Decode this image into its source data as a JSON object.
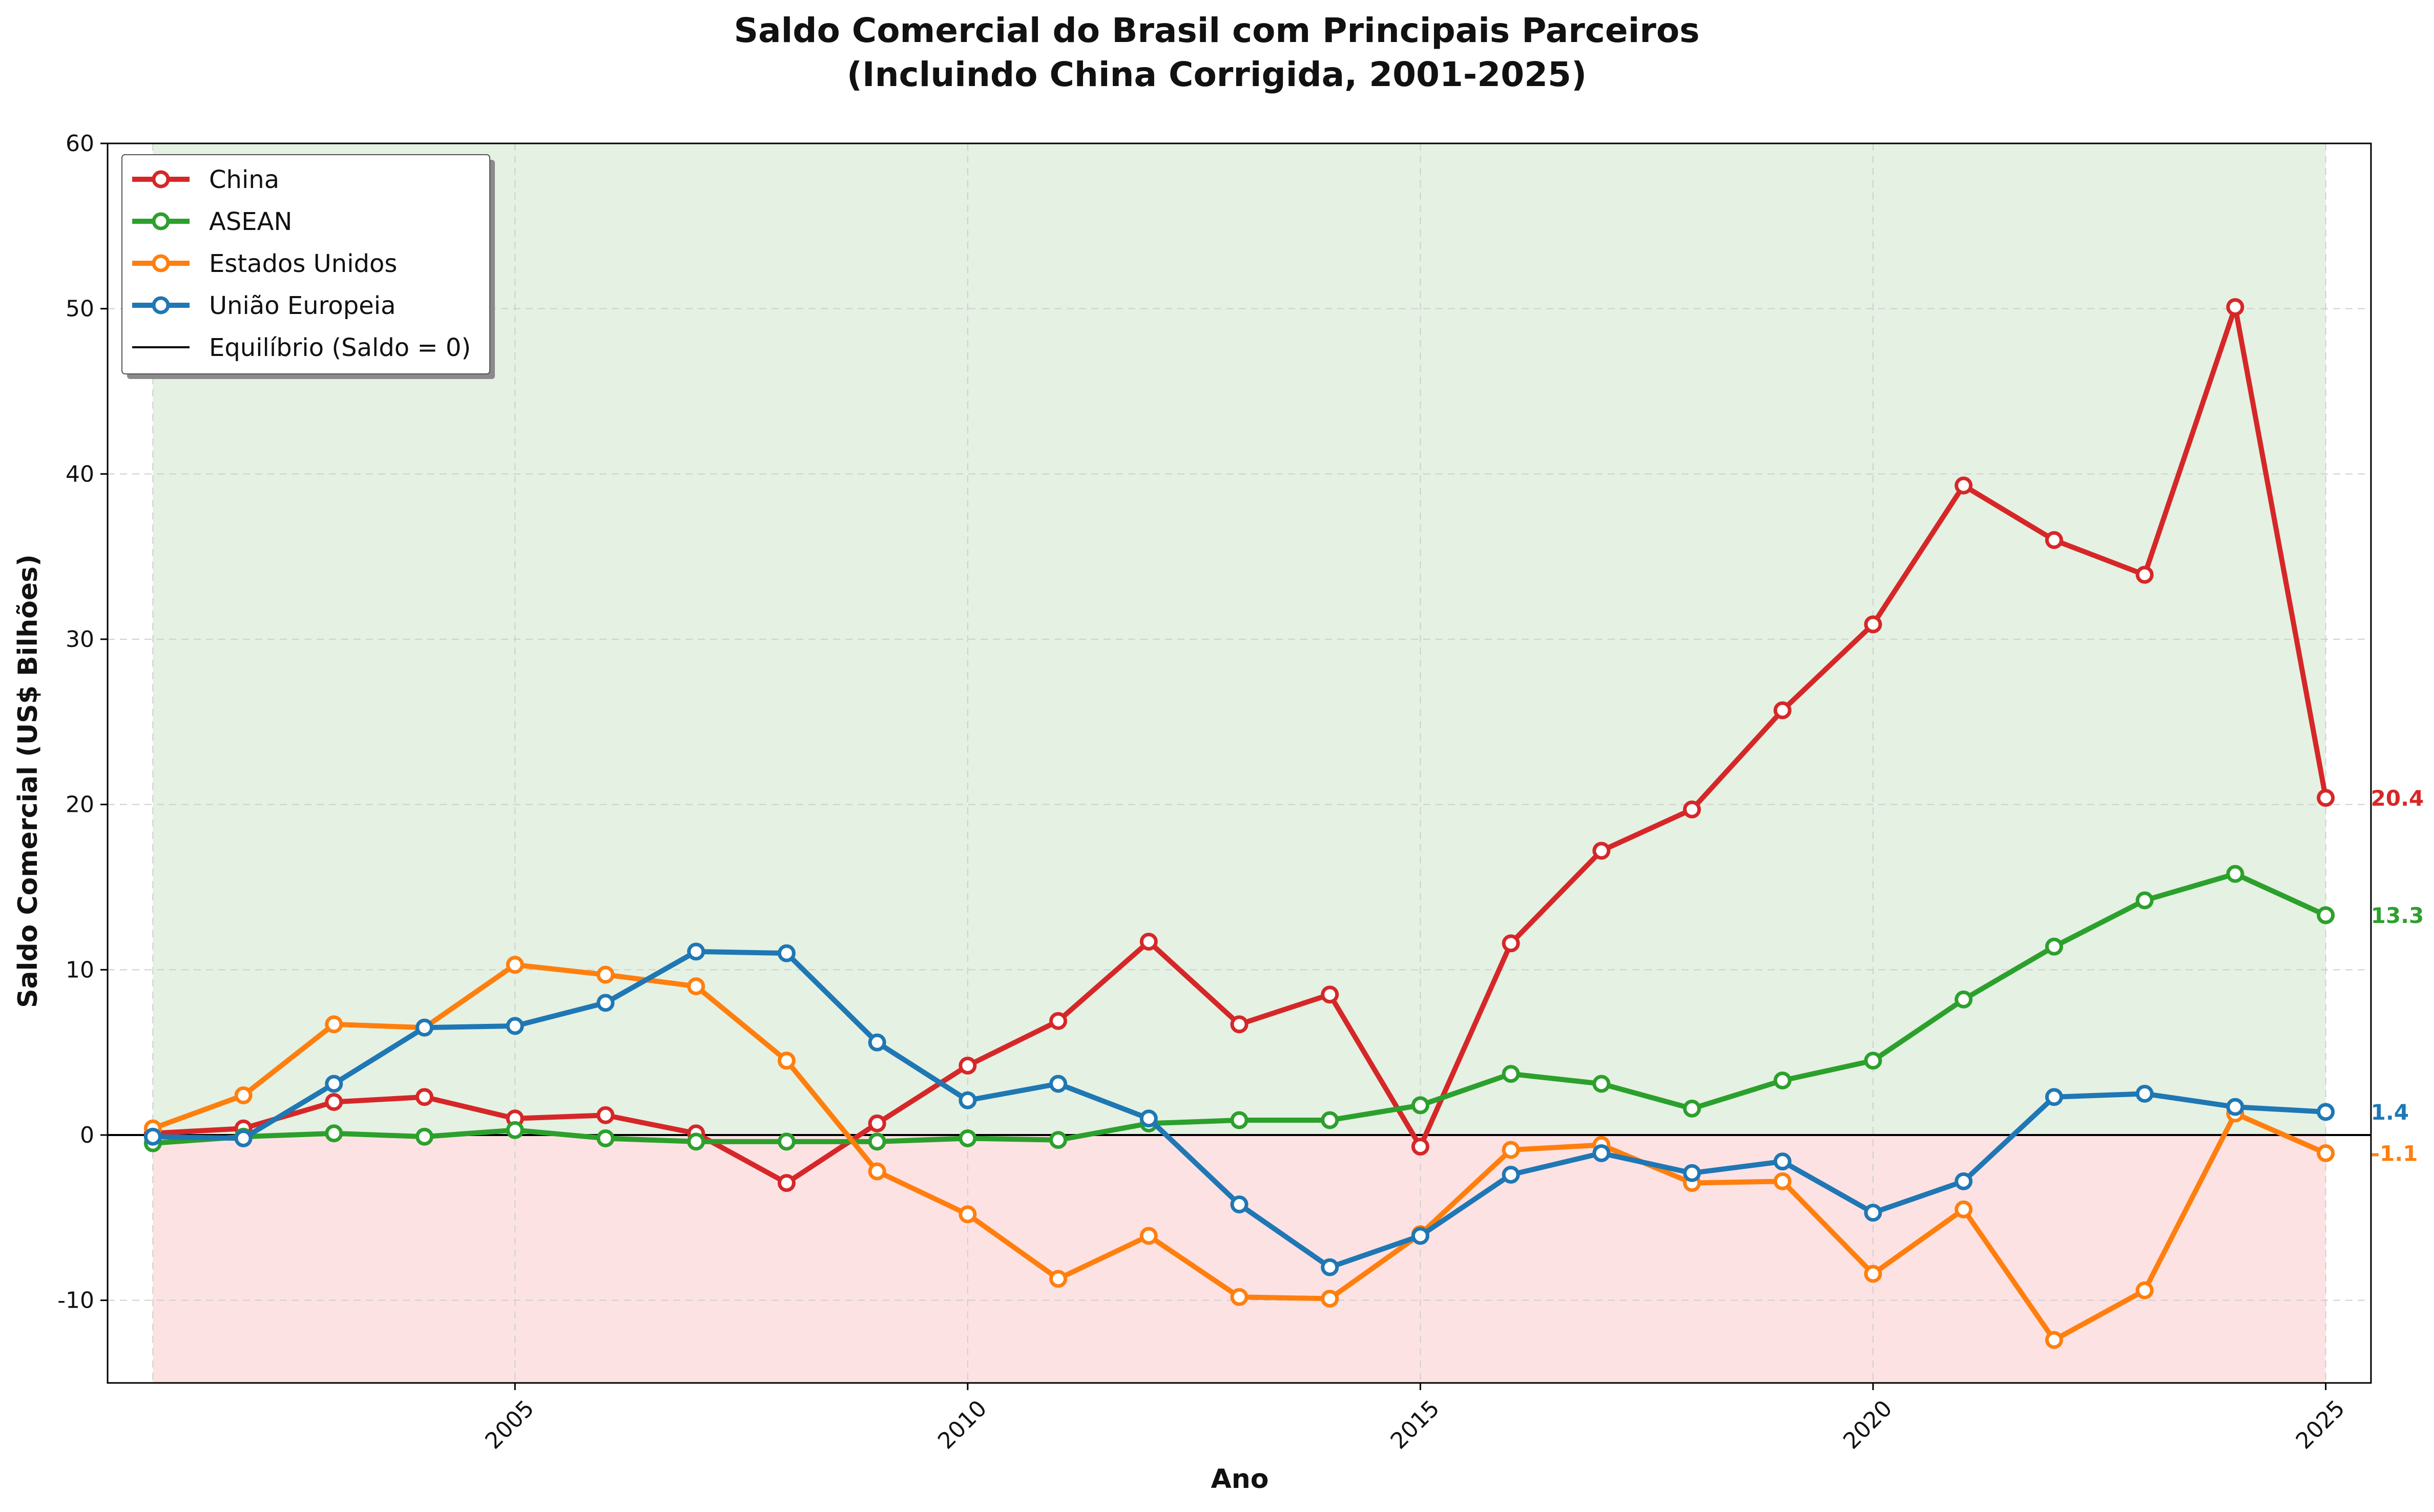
{
  "chart_data": {
    "type": "line",
    "title": "Saldo Comercial do Brasil com Principais Parceiros",
    "subtitle": "(Incluindo China Corrigida, 2001-2025)",
    "xlabel": "Ano",
    "ylabel": "Saldo Comercial (US$ Bilhões)",
    "xlim": [
      2000.5,
      2025.5
    ],
    "ylim": [
      -15,
      60
    ],
    "xticks": [
      2005,
      2010,
      2015,
      2020,
      2025
    ],
    "yticks": [
      -10,
      0,
      10,
      20,
      30,
      40,
      50,
      60
    ],
    "ytick_labels": [
      "-10",
      "0",
      "10",
      "20",
      "30",
      "40",
      "50",
      "60"
    ],
    "grid": true,
    "legend_position": "top-left",
    "x": [
      2001,
      2002,
      2003,
      2004,
      2005,
      2006,
      2007,
      2008,
      2009,
      2010,
      2011,
      2012,
      2013,
      2014,
      2015,
      2016,
      2017,
      2018,
      2019,
      2020,
      2021,
      2022,
      2023,
      2024,
      2025
    ],
    "series": [
      {
        "name": "China",
        "color": "#d62728",
        "end_label": "20.4",
        "values": [
          0.1,
          0.4,
          2.0,
          2.3,
          1.0,
          1.2,
          0.1,
          -2.9,
          0.7,
          4.2,
          6.9,
          11.7,
          6.7,
          8.5,
          -0.7,
          11.6,
          17.2,
          19.7,
          25.7,
          30.9,
          39.3,
          36.0,
          33.9,
          50.1,
          20.4
        ]
      },
      {
        "name": "ASEAN",
        "color": "#2ca02c",
        "end_label": "13.3",
        "values": [
          -0.5,
          -0.1,
          0.1,
          -0.1,
          0.3,
          -0.2,
          -0.4,
          -0.4,
          -0.4,
          -0.2,
          -0.3,
          0.7,
          0.9,
          0.9,
          1.8,
          3.7,
          3.1,
          1.6,
          3.3,
          4.5,
          8.2,
          11.4,
          14.2,
          15.8,
          13.3
        ]
      },
      {
        "name": "Estados Unidos",
        "color": "#ff7f0e",
        "end_label": "-1.1",
        "values": [
          0.4,
          2.4,
          6.7,
          6.5,
          10.3,
          9.7,
          9.0,
          4.5,
          -2.2,
          -4.8,
          -8.7,
          -6.1,
          -9.8,
          -9.9,
          -6.0,
          -0.9,
          -0.6,
          -2.9,
          -2.8,
          -8.4,
          -4.5,
          -12.4,
          -9.4,
          1.3,
          -1.1
        ]
      },
      {
        "name": "União Europeia",
        "color": "#1f77b4",
        "end_label": "1.4",
        "values": [
          -0.1,
          -0.2,
          3.1,
          6.5,
          6.6,
          8.0,
          11.1,
          11.0,
          5.6,
          2.1,
          3.1,
          1.0,
          -4.2,
          -8.0,
          -6.1,
          -2.4,
          -1.1,
          -2.3,
          -1.6,
          -4.7,
          -2.8,
          2.3,
          2.5,
          1.7,
          1.4
        ]
      }
    ],
    "reference_line": {
      "name": "Equilíbrio (Saldo = 0)",
      "y": 0,
      "color": "#000000"
    },
    "shading": {
      "positive_color": "#e5f1e3",
      "negative_color": "#fde2e4"
    }
  }
}
